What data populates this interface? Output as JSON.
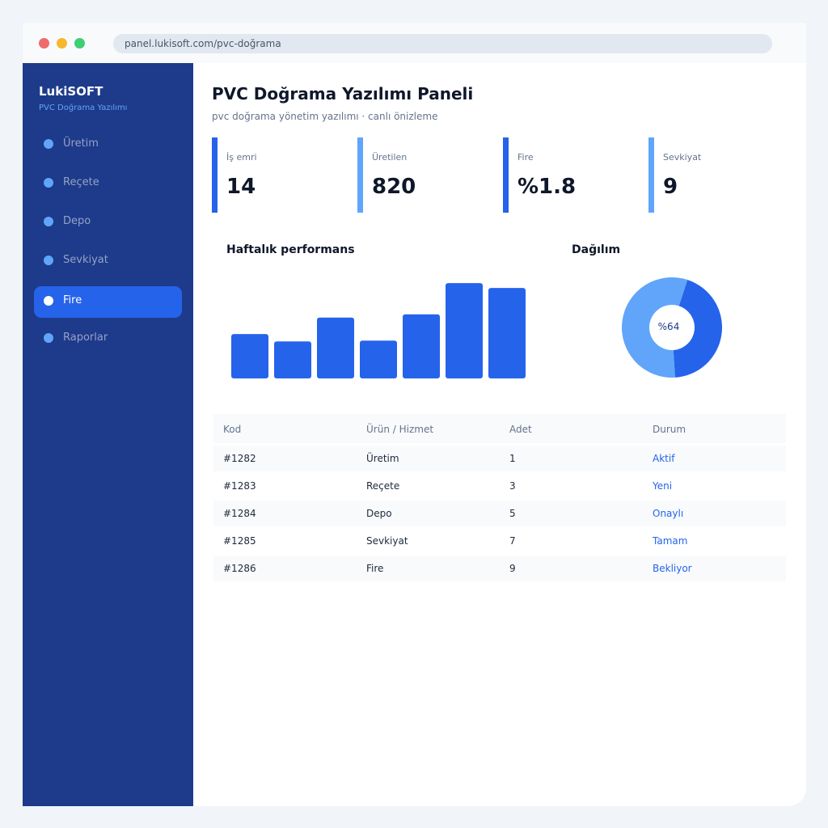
{
  "browser": {
    "url": "panel.lukisoft.com/pvc-doğrama"
  },
  "sidebar": {
    "brand": "LukiSOFT",
    "brand_sub": "PVC Doğrama Yazılımı",
    "items": [
      {
        "label": "Üretim",
        "active": false
      },
      {
        "label": "Reçete",
        "active": false
      },
      {
        "label": "Depo",
        "active": false
      },
      {
        "label": "Sevkiyat",
        "active": false
      },
      {
        "label": "Fire",
        "active": true
      },
      {
        "label": "Raporlar",
        "active": false
      }
    ]
  },
  "main": {
    "title": "PVC Doğrama Yazılımı Paneli",
    "subtitle": "pvc doğrama yönetim yazılımı · canlı önizleme",
    "kpis": [
      {
        "label": "İş emri",
        "value": "14",
        "color": "#2563eb"
      },
      {
        "label": "Üretilen",
        "value": "820",
        "color": "#60a5fa"
      },
      {
        "label": "Fire",
        "value": "%1.8",
        "color": "#2563eb"
      },
      {
        "label": "Sevkiyat",
        "value": "9",
        "color": "#60a5fa"
      }
    ],
    "weekly_title": "Haftalık performans",
    "distribution_title": "Dağılım",
    "donut_label": "%64"
  },
  "chart_data": [
    {
      "type": "bar",
      "title": "Haftalık performans",
      "categories": [
        "",
        "",
        "",
        "",
        "",
        "",
        ""
      ],
      "values": [
        54,
        45,
        74,
        46,
        78,
        116,
        110
      ],
      "ylim": [
        0,
        120
      ],
      "grid": false,
      "color": "#2563eb"
    },
    {
      "type": "pie",
      "title": "Dağılım",
      "values": [
        44,
        56
      ],
      "colors": [
        "#2563eb",
        "#60a5fa"
      ],
      "center_label": "%64"
    }
  ],
  "table": {
    "headers": [
      "Kod",
      "Ürün / Hizmet",
      "Adet",
      "Durum"
    ],
    "rows": [
      [
        "#1282",
        "Üretim",
        "1",
        "Aktif"
      ],
      [
        "#1283",
        "Reçete",
        "3",
        "Yeni"
      ],
      [
        "#1284",
        "Depo",
        "5",
        "Onaylı"
      ],
      [
        "#1285",
        "Sevkiyat",
        "7",
        "Tamam"
      ],
      [
        "#1286",
        "Fire",
        "9",
        "Bekliyor"
      ]
    ]
  },
  "colors": {
    "sidebar_bg": "#1e3a8a",
    "accent": "#2563eb",
    "accent_light": "#60a5fa"
  }
}
